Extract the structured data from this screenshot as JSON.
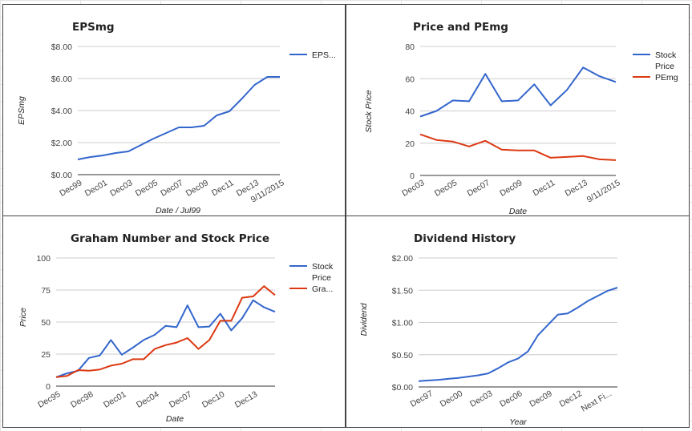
{
  "chart_data": [
    {
      "type": "line",
      "title": "EPSmg",
      "xlabel": "Date / Jul99",
      "ylabel": "EPSmg",
      "x_tick_labels": [
        "Dec99",
        "Dec01",
        "Dec03",
        "Dec05",
        "Dec07",
        "Dec09",
        "Dec11",
        "Dec13",
        "9/11/2015"
      ],
      "x_tick_positions": [
        0,
        2,
        4,
        6,
        8,
        10,
        12,
        14,
        16
      ],
      "y_tick_labels": [
        "$0.00",
        "$2.00",
        "$4.00",
        "$6.00",
        "$8.00"
      ],
      "ylim": [
        0,
        8
      ],
      "x_range": [
        0,
        16
      ],
      "legend_position": "right",
      "grid": true,
      "series": [
        {
          "name": "EPS...",
          "color": "#3366cc",
          "x": [
            0,
            1,
            2,
            3,
            4,
            5,
            6,
            7,
            8,
            9,
            10,
            11,
            12,
            13,
            14,
            15,
            16
          ],
          "values": [
            0.95,
            1.1,
            1.2,
            1.35,
            1.45,
            1.85,
            2.25,
            2.6,
            2.95,
            2.95,
            3.05,
            3.7,
            3.95,
            4.75,
            5.6,
            6.1,
            6.1
          ]
        }
      ]
    },
    {
      "type": "line",
      "title": "Price and PEmg",
      "xlabel": "Date",
      "ylabel": "Stock Price",
      "x_tick_labels": [
        "Dec03",
        "Dec05",
        "Dec07",
        "Dec09",
        "Dec11",
        "Dec13",
        "9/11/2015"
      ],
      "x_tick_positions": [
        0,
        2,
        4,
        6,
        8,
        10,
        12
      ],
      "y_tick_labels": [
        "0",
        "20",
        "40",
        "60",
        "80"
      ],
      "ylim": [
        0,
        80
      ],
      "x_range": [
        0,
        12
      ],
      "legend_position": "right",
      "grid": true,
      "series": [
        {
          "name": "Stock Price",
          "color": "#3366cc",
          "x": [
            0,
            1,
            2,
            3,
            4,
            5,
            6,
            7,
            8,
            9,
            10,
            11,
            12
          ],
          "values": [
            36.5,
            40,
            46.5,
            46,
            63,
            46,
            46.5,
            56.5,
            43.5,
            53,
            67,
            61.5,
            58
          ]
        },
        {
          "name": "PEmg",
          "color": "#dc3912",
          "x": [
            0,
            1,
            2,
            3,
            4,
            5,
            6,
            7,
            8,
            9,
            10,
            11,
            12
          ],
          "values": [
            25.5,
            22,
            21,
            18,
            21.5,
            16,
            15.5,
            15.5,
            11,
            11.5,
            12,
            10,
            9.5
          ]
        }
      ]
    },
    {
      "type": "line",
      "title": "Graham Number and Stock Price",
      "xlabel": "Date",
      "ylabel": "Price",
      "x_tick_labels": [
        "Dec95",
        "Dec98",
        "Dec01",
        "Dec04",
        "Dec07",
        "Dec10",
        "Dec13"
      ],
      "x_tick_positions": [
        0,
        3,
        6,
        9,
        12,
        15,
        18
      ],
      "y_tick_labels": [
        "0",
        "25",
        "50",
        "75",
        "100"
      ],
      "ylim": [
        0,
        100
      ],
      "x_range": [
        0,
        20
      ],
      "legend_position": "right",
      "grid": true,
      "series": [
        {
          "name": "Stock Price",
          "color": "#3366cc",
          "x": [
            0,
            1,
            2,
            3,
            4,
            5,
            6,
            7,
            8,
            9,
            10,
            11,
            12,
            13,
            14,
            15,
            16,
            17,
            18,
            19,
            20
          ],
          "values": [
            7,
            10,
            12,
            22,
            24,
            36,
            24.5,
            30,
            36,
            40,
            47,
            46,
            63,
            46,
            46.5,
            56.5,
            43.5,
            53,
            67,
            61.5,
            58
          ]
        },
        {
          "name": "Gra...",
          "color": "#dc3912",
          "x": [
            0,
            1,
            2,
            3,
            4,
            5,
            6,
            7,
            8,
            9,
            10,
            11,
            12,
            13,
            14,
            15,
            16,
            17,
            18,
            19,
            20
          ],
          "values": [
            7,
            8,
            12.5,
            12,
            13,
            16,
            17.5,
            21,
            21,
            29,
            32,
            34,
            37.5,
            29,
            36,
            51,
            51,
            69,
            70,
            78,
            71
          ]
        }
      ]
    },
    {
      "type": "line",
      "title": "Dividend History",
      "xlabel": "Year",
      "ylabel": "Dividend",
      "x_tick_labels": [
        "Dec97",
        "Dec00",
        "Dec03",
        "Dec06",
        "Dec09",
        "Dec12",
        "Next Fi..."
      ],
      "x_tick_positions": [
        0,
        3,
        6,
        9,
        12,
        15,
        18
      ],
      "y_tick_labels": [
        "$0.00",
        "$0.50",
        "$1.00",
        "$1.50",
        "$2.00"
      ],
      "ylim": [
        0,
        2
      ],
      "x_range": [
        -1,
        19
      ],
      "legend_position": "none",
      "grid": true,
      "series": [
        {
          "name": "Dividend",
          "color": "#3366cc",
          "x": [
            -1,
            0,
            1,
            2,
            3,
            4,
            5,
            6,
            7,
            8,
            9,
            10,
            11,
            12,
            13,
            14,
            15,
            16,
            17,
            18,
            19
          ],
          "values": [
            0.09,
            0.1,
            0.11,
            0.125,
            0.14,
            0.16,
            0.18,
            0.21,
            0.29,
            0.38,
            0.44,
            0.55,
            0.8,
            0.96,
            1.12,
            1.14,
            1.23,
            1.33,
            1.41,
            1.49,
            1.54
          ]
        }
      ]
    }
  ]
}
